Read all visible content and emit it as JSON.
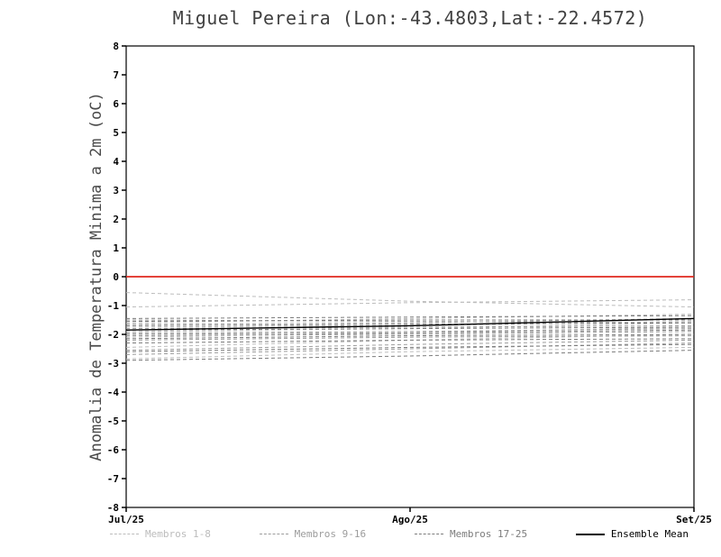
{
  "figure": {
    "background": "#ffffff"
  },
  "chart_data": {
    "type": "line",
    "title": "Miguel Pereira (Lon:-43.4803,Lat:-22.4572)",
    "xlabel": "",
    "ylabel": "Anomalia de Temperatura Minima a 2m (oC)",
    "x_tick_labels": [
      "Jul/25",
      "Ago/25",
      "Set/25"
    ],
    "x_values": [
      0,
      1,
      2
    ],
    "ylim": [
      -8,
      8
    ],
    "ytick_step": 1,
    "y_tick_labels": [
      "8",
      "7",
      "6",
      "5",
      "4",
      "3",
      "2",
      "1",
      "0",
      "-1",
      "-2",
      "-3",
      "-4",
      "-5",
      "-6",
      "-7",
      "-8"
    ],
    "grid": false,
    "legend_position": "bottom",
    "axis_color": "#000000",
    "zero_line": {
      "label": "zero-anomaly-reference",
      "color": "#e0281e",
      "values": [
        0,
        0,
        0
      ]
    },
    "ensemble_mean": {
      "label": "Ensemble Mean",
      "color": "#000000",
      "values": [
        -1.85,
        -1.7,
        -1.45
      ]
    },
    "member_groups": [
      {
        "label": "Membros 1-8",
        "color": "#bcbcbc",
        "line_style": "dashed",
        "members": [
          [
            -0.55,
            -0.85,
            -1.05
          ],
          [
            -1.05,
            -0.9,
            -0.8
          ],
          [
            -1.6,
            -1.45,
            -1.3
          ],
          [
            -1.75,
            -1.7,
            -1.55
          ],
          [
            -1.9,
            -1.8,
            -1.6
          ],
          [
            -2.1,
            -1.95,
            -1.75
          ],
          [
            -2.45,
            -2.2,
            -2.0
          ],
          [
            -2.85,
            -2.6,
            -2.45
          ]
        ]
      },
      {
        "label": "Membros 9-16",
        "color": "#9c9c9c",
        "line_style": "dashed",
        "members": [
          [
            -1.5,
            -1.55,
            -1.6
          ],
          [
            -1.65,
            -1.6,
            -1.45
          ],
          [
            -1.8,
            -1.75,
            -1.7
          ],
          [
            -1.95,
            -1.9,
            -1.8
          ],
          [
            -2.05,
            -2.0,
            -1.9
          ],
          [
            -2.2,
            -2.1,
            -2.05
          ],
          [
            -2.55,
            -2.35,
            -2.2
          ],
          [
            -2.7,
            -2.5,
            -2.3
          ]
        ]
      },
      {
        "label": "Membros 17-25",
        "color": "#7c7c7c",
        "line_style": "dashed",
        "members": [
          [
            -1.45,
            -1.4,
            -1.35
          ],
          [
            -1.55,
            -1.5,
            -1.5
          ],
          [
            -1.7,
            -1.65,
            -1.6
          ],
          [
            -1.85,
            -1.8,
            -1.75
          ],
          [
            -2.0,
            -1.95,
            -1.85
          ],
          [
            -2.15,
            -2.05,
            -2.0
          ],
          [
            -2.3,
            -2.2,
            -2.15
          ],
          [
            -2.6,
            -2.45,
            -2.35
          ],
          [
            -2.9,
            -2.75,
            -2.55
          ]
        ]
      }
    ],
    "legend": [
      {
        "label": "Membros 1-8",
        "color": "#bcbcbc",
        "line_style": "dashed"
      },
      {
        "label": "Membros 9-16",
        "color": "#9c9c9c",
        "line_style": "dashed"
      },
      {
        "label": "Membros 17-25",
        "color": "#7c7c7c",
        "line_style": "dashed"
      },
      {
        "label": "Ensemble Mean",
        "color": "#000000",
        "line_style": "solid"
      }
    ]
  }
}
